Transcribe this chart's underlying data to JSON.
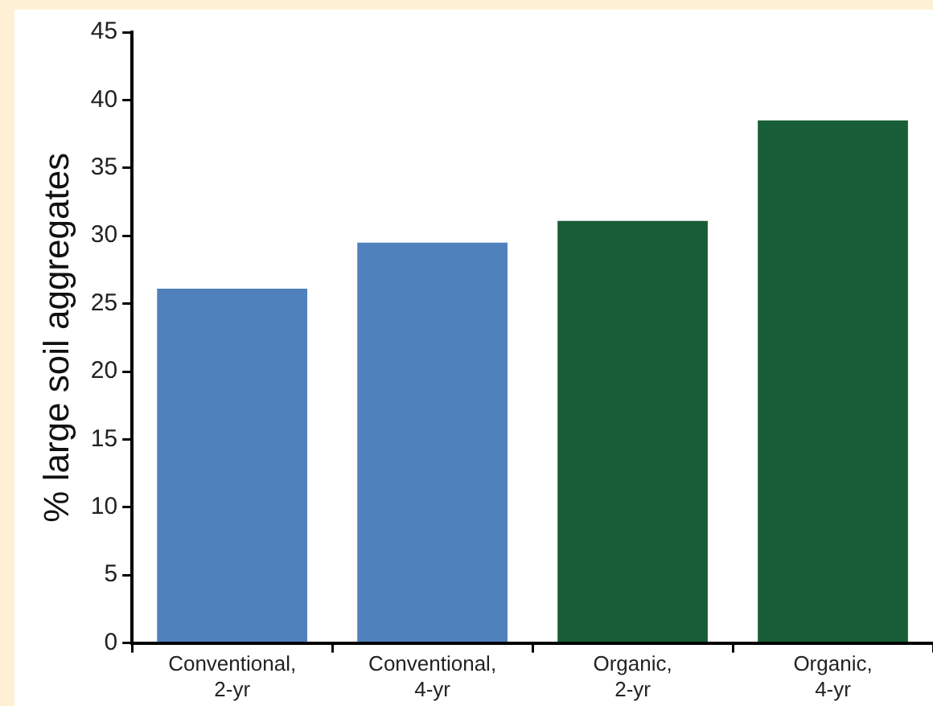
{
  "chart_data": {
    "type": "bar",
    "ylabel": "% large soil aggregates",
    "categories": [
      "Conventional, 2-yr",
      "Conventional, 4-yr",
      "Organic, 2-yr",
      "Organic, 4-yr"
    ],
    "values": [
      26.1,
      29.5,
      31.1,
      38.5
    ],
    "colors": [
      "#4f81bd",
      "#4f81bd",
      "#175e36",
      "#175e36"
    ],
    "ylim": [
      0,
      45
    ],
    "yticks": [
      0,
      5,
      10,
      15,
      20,
      25,
      30,
      35,
      40,
      45
    ],
    "grid": false
  }
}
